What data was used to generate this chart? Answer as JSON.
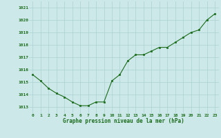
{
  "x": [
    0,
    1,
    2,
    3,
    4,
    5,
    6,
    7,
    8,
    9,
    10,
    11,
    12,
    13,
    14,
    15,
    16,
    17,
    18,
    19,
    20,
    21,
    22,
    23
  ],
  "y": [
    1015.6,
    1015.1,
    1014.5,
    1014.1,
    1013.8,
    1013.4,
    1013.1,
    1013.1,
    1013.4,
    1013.4,
    1015.1,
    1015.6,
    1016.7,
    1017.2,
    1017.2,
    1017.5,
    1017.8,
    1017.8,
    1018.2,
    1018.6,
    1019.0,
    1019.2,
    1020.0,
    1020.5
  ],
  "line_color": "#1a6b1a",
  "marker_color": "#1a6b1a",
  "bg_color": "#cce8e8",
  "grid_color": "#aad0d0",
  "xlabel": "Graphe pression niveau de la mer (hPa)",
  "xlabel_color": "#1a6b1a",
  "ytick_labels": [
    "1013",
    "1014",
    "1015",
    "1016",
    "1017",
    "1018",
    "1019",
    "1020",
    "1021"
  ],
  "ytick_values": [
    1013,
    1014,
    1015,
    1016,
    1017,
    1018,
    1019,
    1020,
    1021
  ],
  "ylim": [
    1012.5,
    1021.5
  ],
  "xlim": [
    -0.5,
    23.5
  ],
  "xtick_labels": [
    "0",
    "1",
    "2",
    "3",
    "4",
    "5",
    "6",
    "7",
    "8",
    "9",
    "10",
    "11",
    "12",
    "13",
    "14",
    "15",
    "16",
    "17",
    "18",
    "19",
    "20",
    "21",
    "22",
    "23"
  ],
  "xtick_values": [
    0,
    1,
    2,
    3,
    4,
    5,
    6,
    7,
    8,
    9,
    10,
    11,
    12,
    13,
    14,
    15,
    16,
    17,
    18,
    19,
    20,
    21,
    22,
    23
  ]
}
